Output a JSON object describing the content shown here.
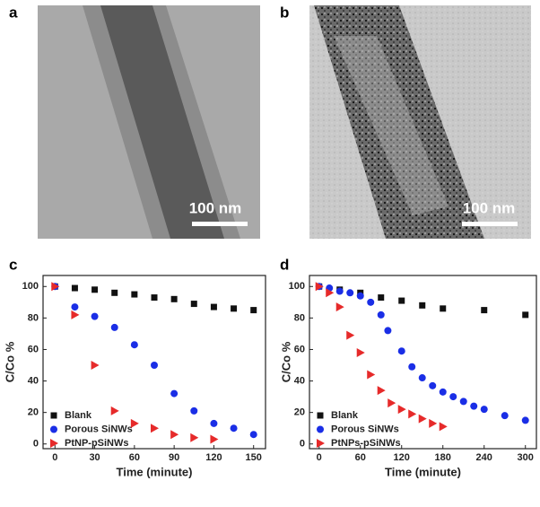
{
  "panels": [
    {
      "label": "a",
      "scale_bar": "100 nm"
    },
    {
      "label": "b",
      "scale_bar": "100 nm"
    }
  ],
  "chart_data": [
    {
      "type": "scatter",
      "panel_label": "c",
      "x_label": "Time (minute)",
      "y_label": "C/Co %",
      "xlim": [
        -9,
        159
      ],
      "ylim": [
        -3,
        107
      ],
      "xticks": [
        0,
        30,
        60,
        90,
        120,
        150
      ],
      "yticks": [
        0,
        20,
        40,
        60,
        80,
        100
      ],
      "series": [
        {
          "name": "Blank",
          "color": "#111111",
          "marker": "square",
          "x": [
            0,
            15,
            30,
            45,
            60,
            75,
            90,
            105,
            120,
            135,
            150
          ],
          "values": [
            100,
            99,
            98,
            96,
            95,
            93,
            92,
            89,
            87,
            86,
            85
          ]
        },
        {
          "name": "Porous SiNWs",
          "color": "#1a2ee6",
          "marker": "circle",
          "x": [
            0,
            15,
            30,
            45,
            60,
            75,
            90,
            105,
            120,
            135,
            150
          ],
          "values": [
            100,
            87,
            81,
            74,
            63,
            50,
            32,
            21,
            13,
            10,
            6
          ]
        },
        {
          "name": "PtNP-pSiNWs",
          "color": "#e62a2a",
          "marker": "triangle",
          "x": [
            0,
            15,
            30,
            45,
            60,
            75,
            90,
            105,
            120
          ],
          "values": [
            100,
            82,
            50,
            21,
            13,
            10,
            6,
            4,
            3
          ]
        }
      ]
    },
    {
      "type": "scatter",
      "panel_label": "d",
      "x_label": "Time (minute)",
      "y_label": "C/Co %",
      "xlim": [
        -14,
        316
      ],
      "ylim": [
        -3,
        107
      ],
      "xticks": [
        0,
        60,
        120,
        180,
        240,
        300
      ],
      "yticks": [
        0,
        20,
        40,
        60,
        80,
        100
      ],
      "series": [
        {
          "name": "Blank",
          "color": "#111111",
          "marker": "square",
          "x": [
            0,
            30,
            60,
            90,
            120,
            150,
            180,
            240,
            300
          ],
          "values": [
            100,
            98,
            96,
            93,
            91,
            88,
            86,
            85,
            82
          ]
        },
        {
          "name": "Porous SiNWs",
          "color": "#1a2ee6",
          "marker": "circle",
          "x": [
            0,
            15,
            30,
            45,
            60,
            75,
            90,
            100,
            120,
            135,
            150,
            165,
            180,
            195,
            210,
            225,
            240,
            270,
            300
          ],
          "values": [
            100,
            99,
            97,
            96,
            94,
            90,
            82,
            72,
            59,
            49,
            42,
            37,
            33,
            30,
            27,
            24,
            22,
            18,
            15
          ]
        },
        {
          "name": "PtNPs-pSiNWs",
          "color": "#e62a2a",
          "marker": "triangle",
          "x": [
            0,
            15,
            30,
            45,
            60,
            75,
            90,
            105,
            120,
            135,
            150,
            165,
            180
          ],
          "values": [
            100,
            96,
            87,
            69,
            58,
            44,
            34,
            26,
            22,
            19,
            16,
            13,
            11
          ]
        }
      ]
    }
  ]
}
